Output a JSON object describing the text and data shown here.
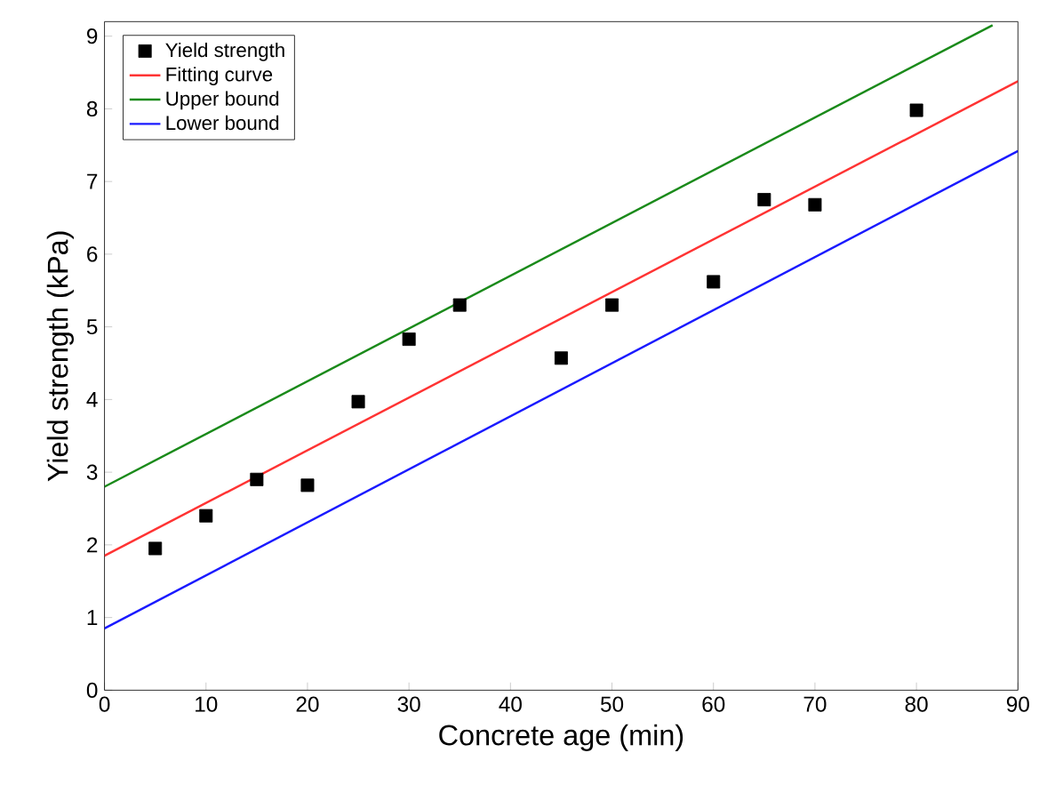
{
  "chart_data": {
    "type": "scatter",
    "xlabel": "Concrete age (min)",
    "ylabel": "Yield strength (kPa)",
    "xlim": [
      0,
      90
    ],
    "ylim": [
      0,
      9.2
    ],
    "xticks": [
      0,
      10,
      20,
      30,
      40,
      50,
      60,
      70,
      80,
      90
    ],
    "yticks": [
      0,
      1,
      2,
      3,
      4,
      5,
      6,
      7,
      8,
      9
    ],
    "legend": "top left",
    "grid": false,
    "series": [
      {
        "name": "Yield strength",
        "marker": "square",
        "color": "#000000",
        "x": [
          5,
          10,
          15,
          20,
          25,
          30,
          35,
          45,
          50,
          60,
          65,
          70,
          80
        ],
        "values": [
          1.95,
          2.4,
          2.9,
          2.82,
          3.97,
          4.83,
          5.3,
          4.57,
          5.3,
          5.62,
          6.75,
          6.68,
          7.98
        ]
      },
      {
        "name": "Fitting curve",
        "type": "line",
        "marker": "none",
        "color": "#ff3333",
        "x": [
          0,
          90
        ],
        "values": [
          1.85,
          8.38
        ]
      },
      {
        "name": "Upper bound",
        "type": "line",
        "marker": "none",
        "color": "#1a8a1a",
        "x": [
          0,
          87.5
        ],
        "values": [
          2.8,
          9.15
        ]
      },
      {
        "name": "Lower bound",
        "type": "line",
        "marker": "none",
        "color": "#1a1aff",
        "x": [
          0,
          90
        ],
        "values": [
          0.85,
          7.42
        ]
      }
    ]
  }
}
